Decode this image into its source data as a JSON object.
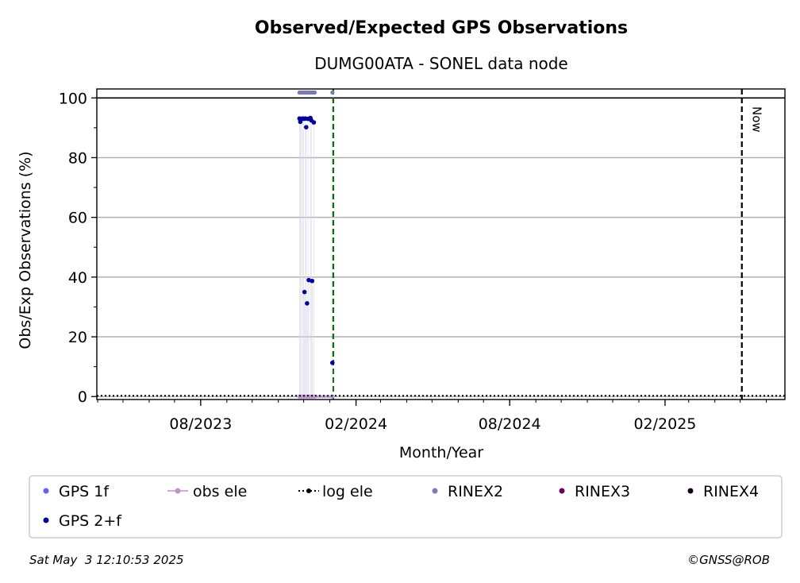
{
  "chart_data": {
    "type": "scatter",
    "title": "Observed/Expected GPS Observations",
    "subtitle": "DUMG00ATA - SONEL data node",
    "xlabel": "Month/Year",
    "ylabel": "Obs/Exp Observations (%)",
    "xlim": [
      "2023-03-31",
      "2025-06-23"
    ],
    "ylim": [
      -1,
      103
    ],
    "yticks": [
      0,
      20,
      40,
      60,
      80,
      100
    ],
    "xticks": [
      {
        "date": "2023-08-01",
        "label": "08/2023"
      },
      {
        "date": "2024-02-01",
        "label": "02/2024"
      },
      {
        "date": "2024-08-01",
        "label": "08/2024"
      },
      {
        "date": "2025-02-01",
        "label": "02/2025"
      }
    ],
    "grid": true,
    "reference_line_y": 100,
    "vlines": [
      {
        "date": "2024-01-05",
        "style": "dashed",
        "color": "#007000",
        "label": ""
      },
      {
        "date": "2025-05-03",
        "style": "dashed",
        "color": "#000000",
        "label": "Now"
      }
    ],
    "series": [
      {
        "name": "GPS 2+f",
        "color": "#0000a0",
        "points": [
          {
            "x": "2023-11-26",
            "y": 93.1
          },
          {
            "x": "2023-11-27",
            "y": 92.0
          },
          {
            "x": "2023-11-28",
            "y": 93.0
          },
          {
            "x": "2023-11-30",
            "y": 93.1
          },
          {
            "x": "2023-12-01",
            "y": 93.0
          },
          {
            "x": "2023-12-02",
            "y": 35.0
          },
          {
            "x": "2023-12-03",
            "y": 93.1
          },
          {
            "x": "2023-12-04",
            "y": 90.2
          },
          {
            "x": "2023-12-05",
            "y": 31.2
          },
          {
            "x": "2023-12-06",
            "y": 93.0
          },
          {
            "x": "2023-12-07",
            "y": 39.0
          },
          {
            "x": "2023-12-09",
            "y": 93.3
          },
          {
            "x": "2023-12-10",
            "y": 92.5
          },
          {
            "x": "2023-12-11",
            "y": 38.7
          },
          {
            "x": "2023-12-13",
            "y": 91.8
          },
          {
            "x": "2024-01-04",
            "y": 11.3
          }
        ]
      },
      {
        "name": "RINEX2",
        "color": "#7b7bbb",
        "points": [
          {
            "x": "2023-11-26",
            "y": 101.8
          },
          {
            "x": "2023-11-28",
            "y": 101.8
          },
          {
            "x": "2023-11-30",
            "y": 101.8
          },
          {
            "x": "2023-12-02",
            "y": 101.8
          },
          {
            "x": "2023-12-04",
            "y": 101.8
          },
          {
            "x": "2023-12-06",
            "y": 101.8
          },
          {
            "x": "2023-12-08",
            "y": 101.8
          },
          {
            "x": "2023-12-10",
            "y": 101.8
          },
          {
            "x": "2023-12-12",
            "y": 101.8
          },
          {
            "x": "2023-12-14",
            "y": 101.8
          },
          {
            "x": "2024-01-04",
            "y": 101.8
          }
        ]
      },
      {
        "name": "obs ele",
        "color": "#c090d0",
        "points": [
          {
            "x": "2023-11-26",
            "y": 0
          },
          {
            "x": "2023-11-29",
            "y": 0
          },
          {
            "x": "2023-12-02",
            "y": 0
          },
          {
            "x": "2023-12-05",
            "y": 0
          },
          {
            "x": "2023-12-08",
            "y": 0
          },
          {
            "x": "2023-12-11",
            "y": 0
          },
          {
            "x": "2023-12-14",
            "y": 0
          },
          {
            "x": "2024-01-04",
            "y": 0
          }
        ]
      },
      {
        "name": "log ele",
        "color": "#000000",
        "style": "dotted-line",
        "points": [
          {
            "x": "2023-03-31",
            "y": 0
          },
          {
            "x": "2025-06-23",
            "y": 0
          }
        ]
      }
    ],
    "legend": {
      "placement": "bottom",
      "entries": [
        {
          "label": "GPS 1f",
          "color": "#6060ff",
          "marker": "dot"
        },
        {
          "label": "obs ele",
          "color": "#c090d0",
          "marker": "line-dot"
        },
        {
          "label": "log ele",
          "color": "#000000",
          "marker": "dotted-line"
        },
        {
          "label": "RINEX2",
          "color": "#7b7bbb",
          "marker": "dot"
        },
        {
          "label": "RINEX3",
          "color": "#6a0060",
          "marker": "dot"
        },
        {
          "label": "RINEX4",
          "color": "#1a0018",
          "marker": "dot"
        },
        {
          "label": "GPS 2+f",
          "color": "#0000a0",
          "marker": "dot"
        }
      ]
    }
  },
  "footer": {
    "timestamp": "Sat May  3 12:10:53 2025",
    "credit": "©GNSS@ROB"
  }
}
